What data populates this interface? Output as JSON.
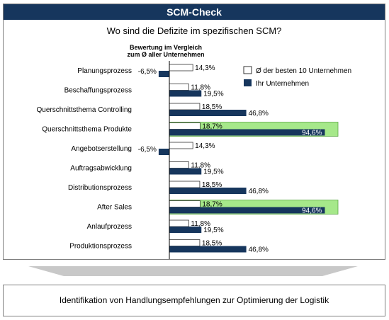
{
  "header": {
    "title": "SCM-Check"
  },
  "subtitle": "Wo sind die Defizite im spezifischen SCM?",
  "footer": {
    "text": "Identifikation von Handlungsempfehlungen zur Optimierung der Logistik"
  },
  "colors": {
    "header_bg": "#16365d",
    "own": "#16365d",
    "best": "#ffffff",
    "highlight": "#a6e88a",
    "arrow": "#c8c8c8"
  },
  "chart_data": {
    "type": "bar",
    "orientation": "horizontal",
    "title": "Bewertung im Vergleich zum Ø aller Unternehmen",
    "title_lines": [
      "Bewertung im Vergleich",
      "zum Ø aller Unternehmen"
    ],
    "categories": [
      "Planungsprozess",
      "Beschaffungsprozess",
      "Querschnittsthema Controlling",
      "Querschnittsthema Produkte",
      "Angebotserstellung",
      "Auftragsabwicklung",
      "Distributionsprozess",
      "After Sales",
      "Anlaufprozess",
      "Produktionsprozess"
    ],
    "series": [
      {
        "name": "Ø der besten 10 Unternehmen",
        "values": [
          14.3,
          11.8,
          18.5,
          18.7,
          14.3,
          11.8,
          18.5,
          18.7,
          11.8,
          18.5
        ],
        "labels": [
          "14,3%",
          "11,8%",
          "18,5%",
          "18,7%",
          "14,3%",
          "11,8%",
          "18,5%",
          "18,7%",
          "11,8%",
          "18,5%"
        ]
      },
      {
        "name": "Ihr Unternehmen",
        "values": [
          -6.5,
          19.5,
          46.8,
          94.6,
          -6.5,
          19.5,
          46.8,
          94.6,
          19.5,
          46.8
        ],
        "labels": [
          "-6,5%",
          "19,5%",
          "46,8%",
          "94,6%",
          "-6,5%",
          "19,5%",
          "46,8%",
          "94,6%",
          "19,5%",
          "46,8%"
        ]
      }
    ],
    "highlighted_categories": [
      "Querschnittsthema Produkte",
      "After Sales"
    ],
    "xlim": [
      -10,
      100
    ],
    "grid": false,
    "legend": "top-right"
  }
}
